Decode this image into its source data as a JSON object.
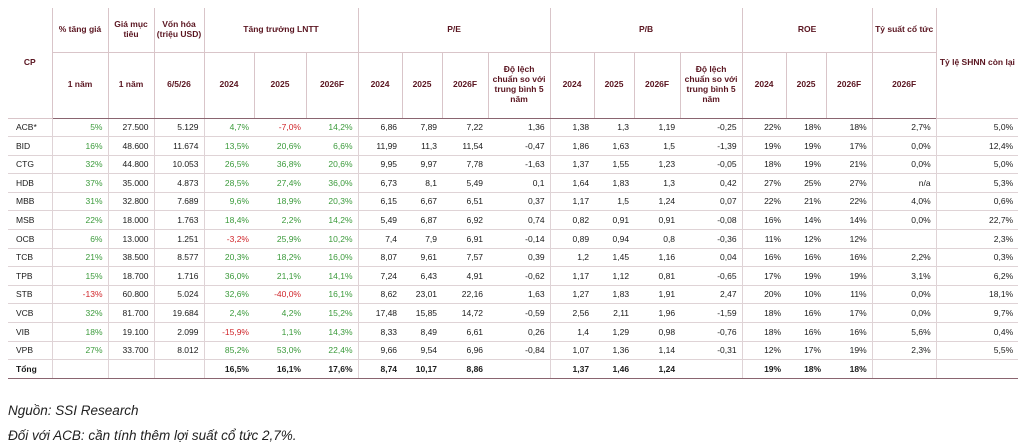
{
  "headers": {
    "cp": "CP",
    "pct_price": "% tăng giá",
    "target_price": "Giá mục tiêu",
    "market_cap": "Vốn hóa (triệu USD)",
    "npat_growth": "Tăng trưởng LNTT",
    "pe": "P/E",
    "pb": "P/B",
    "roe": "ROE",
    "dividend_yield": "Tỷ suất cổ tức",
    "shnn": "Tỷ lệ SHNN còn lại",
    "sub": {
      "one_year_a": "1 năm",
      "one_year_b": "1 năm",
      "date": "6/5/26",
      "y2024": "2024",
      "y2025": "2025",
      "y2026f": "2026F",
      "std_dev": "Độ lệch chuẩn so với trung bình 5 năm"
    }
  },
  "rows": [
    {
      "cp": "ACB*",
      "pct": "5%",
      "target": "27.500",
      "mcap": "5.129",
      "g24": "4,7%",
      "g25": "-7,0%",
      "g26": "14,2%",
      "pe24": "6,86",
      "pe25": "7,89",
      "pe26": "7,22",
      "pe_sd": "1,36",
      "pb24": "1,38",
      "pb25": "1,3",
      "pb26": "1,19",
      "pb_sd": "-0,25",
      "roe24": "22%",
      "roe25": "18%",
      "roe26": "18%",
      "div": "2,7%",
      "shnn": "5,0%"
    },
    {
      "cp": "BID",
      "pct": "16%",
      "target": "48.600",
      "mcap": "11.674",
      "g24": "13,5%",
      "g25": "20,6%",
      "g26": "6,6%",
      "pe24": "11,99",
      "pe25": "11,3",
      "pe26": "11,54",
      "pe_sd": "-0,47",
      "pb24": "1,86",
      "pb25": "1,63",
      "pb26": "1,5",
      "pb_sd": "-1,39",
      "roe24": "19%",
      "roe25": "19%",
      "roe26": "17%",
      "div": "0,0%",
      "shnn": "12,4%"
    },
    {
      "cp": "CTG",
      "pct": "32%",
      "target": "44.800",
      "mcap": "10.053",
      "g24": "26,5%",
      "g25": "36,8%",
      "g26": "20,6%",
      "pe24": "9,95",
      "pe25": "9,97",
      "pe26": "7,78",
      "pe_sd": "-1,63",
      "pb24": "1,37",
      "pb25": "1,55",
      "pb26": "1,23",
      "pb_sd": "-0,05",
      "roe24": "18%",
      "roe25": "19%",
      "roe26": "21%",
      "div": "0,0%",
      "shnn": "5,0%"
    },
    {
      "cp": "HDB",
      "pct": "37%",
      "target": "35.000",
      "mcap": "4.873",
      "g24": "28,5%",
      "g25": "27,4%",
      "g26": "36,0%",
      "pe24": "6,73",
      "pe25": "8,1",
      "pe26": "5,49",
      "pe_sd": "0,1",
      "pb24": "1,64",
      "pb25": "1,83",
      "pb26": "1,3",
      "pb_sd": "0,42",
      "roe24": "27%",
      "roe25": "25%",
      "roe26": "27%",
      "div": "n/a",
      "shnn": "5,3%"
    },
    {
      "cp": "MBB",
      "pct": "31%",
      "target": "32.800",
      "mcap": "7.689",
      "g24": "9,6%",
      "g25": "18,9%",
      "g26": "20,3%",
      "pe24": "6,15",
      "pe25": "6,67",
      "pe26": "6,51",
      "pe_sd": "0,37",
      "pb24": "1,17",
      "pb25": "1,5",
      "pb26": "1,24",
      "pb_sd": "0,07",
      "roe24": "22%",
      "roe25": "21%",
      "roe26": "22%",
      "div": "4,0%",
      "shnn": "0,6%"
    },
    {
      "cp": "MSB",
      "pct": "22%",
      "target": "18.000",
      "mcap": "1.763",
      "g24": "18,4%",
      "g25": "2,2%",
      "g26": "14,2%",
      "pe24": "5,49",
      "pe25": "6,87",
      "pe26": "6,92",
      "pe_sd": "0,74",
      "pb24": "0,82",
      "pb25": "0,91",
      "pb26": "0,91",
      "pb_sd": "-0,08",
      "roe24": "16%",
      "roe25": "14%",
      "roe26": "14%",
      "div": "0,0%",
      "shnn": "22,7%"
    },
    {
      "cp": "OCB",
      "pct": "6%",
      "target": "13.000",
      "mcap": "1.251",
      "g24": "-3,2%",
      "g25": "25,9%",
      "g26": "10,2%",
      "pe24": "7,4",
      "pe25": "7,9",
      "pe26": "6,91",
      "pe_sd": "-0,14",
      "pb24": "0,89",
      "pb25": "0,94",
      "pb26": "0,8",
      "pb_sd": "-0,36",
      "roe24": "11%",
      "roe25": "12%",
      "roe26": "12%",
      "div": "",
      "shnn": "2,3%"
    },
    {
      "cp": "TCB",
      "pct": "21%",
      "target": "38.500",
      "mcap": "8.577",
      "g24": "20,3%",
      "g25": "18,2%",
      "g26": "16,0%",
      "pe24": "8,07",
      "pe25": "9,61",
      "pe26": "7,57",
      "pe_sd": "0,39",
      "pb24": "1,2",
      "pb25": "1,45",
      "pb26": "1,16",
      "pb_sd": "0,04",
      "roe24": "16%",
      "roe25": "16%",
      "roe26": "16%",
      "div": "2,2%",
      "shnn": "0,3%"
    },
    {
      "cp": "TPB",
      "pct": "15%",
      "target": "18.700",
      "mcap": "1.716",
      "g24": "36,0%",
      "g25": "21,1%",
      "g26": "14,1%",
      "pe24": "7,24",
      "pe25": "6,43",
      "pe26": "4,91",
      "pe_sd": "-0,62",
      "pb24": "1,17",
      "pb25": "1,12",
      "pb26": "0,81",
      "pb_sd": "-0,65",
      "roe24": "17%",
      "roe25": "19%",
      "roe26": "19%",
      "div": "3,1%",
      "shnn": "6,2%"
    },
    {
      "cp": "STB",
      "pct": "-13%",
      "target": "60.800",
      "mcap": "5.024",
      "g24": "32,6%",
      "g25": "-40,0%",
      "g26": "16,1%",
      "pe24": "8,62",
      "pe25": "23,01",
      "pe26": "22,16",
      "pe_sd": "1,63",
      "pb24": "1,27",
      "pb25": "1,83",
      "pb26": "1,91",
      "pb_sd": "2,47",
      "roe24": "20%",
      "roe25": "10%",
      "roe26": "11%",
      "div": "0,0%",
      "shnn": "18,1%"
    },
    {
      "cp": "VCB",
      "pct": "32%",
      "target": "81.700",
      "mcap": "19.684",
      "g24": "2,4%",
      "g25": "4,2%",
      "g26": "15,2%",
      "pe24": "17,48",
      "pe25": "15,85",
      "pe26": "14,72",
      "pe_sd": "-0,59",
      "pb24": "2,56",
      "pb25": "2,11",
      "pb26": "1,96",
      "pb_sd": "-1,59",
      "roe24": "18%",
      "roe25": "16%",
      "roe26": "17%",
      "div": "0,0%",
      "shnn": "9,7%"
    },
    {
      "cp": "VIB",
      "pct": "18%",
      "target": "19.100",
      "mcap": "2.099",
      "g24": "-15,9%",
      "g25": "1,1%",
      "g26": "14,3%",
      "pe24": "8,33",
      "pe25": "8,49",
      "pe26": "6,61",
      "pe_sd": "0,26",
      "pb24": "1,4",
      "pb25": "1,29",
      "pb26": "0,98",
      "pb_sd": "-0,76",
      "roe24": "18%",
      "roe25": "16%",
      "roe26": "16%",
      "div": "5,6%",
      "shnn": "0,4%"
    },
    {
      "cp": "VPB",
      "pct": "27%",
      "target": "33.700",
      "mcap": "8.012",
      "g24": "85,2%",
      "g25": "53,0%",
      "g26": "22,4%",
      "pe24": "9,66",
      "pe25": "9,54",
      "pe26": "6,96",
      "pe_sd": "-0,84",
      "pb24": "1,07",
      "pb25": "1,36",
      "pb26": "1,14",
      "pb_sd": "-0,31",
      "roe24": "12%",
      "roe25": "17%",
      "roe26": "19%",
      "div": "2,3%",
      "shnn": "5,5%"
    }
  ],
  "total": {
    "label": "Tổng",
    "g24": "16,5%",
    "g25": "16,1%",
    "g26": "17,6%",
    "pe24": "8,74",
    "pe25": "10,17",
    "pe26": "8,86",
    "pb24": "1,37",
    "pb25": "1,46",
    "pb26": "1,24",
    "roe24": "19%",
    "roe25": "18%",
    "roe26": "18%"
  },
  "colors": {
    "positive": "#3b9a3b",
    "negative": "#d0262b",
    "header": "#5a1520"
  },
  "notes": {
    "source": "Nguồn: SSI Research",
    "acb_note": "Đối với ACB: cần tính thêm lợi suất cổ tức 2,7%."
  }
}
